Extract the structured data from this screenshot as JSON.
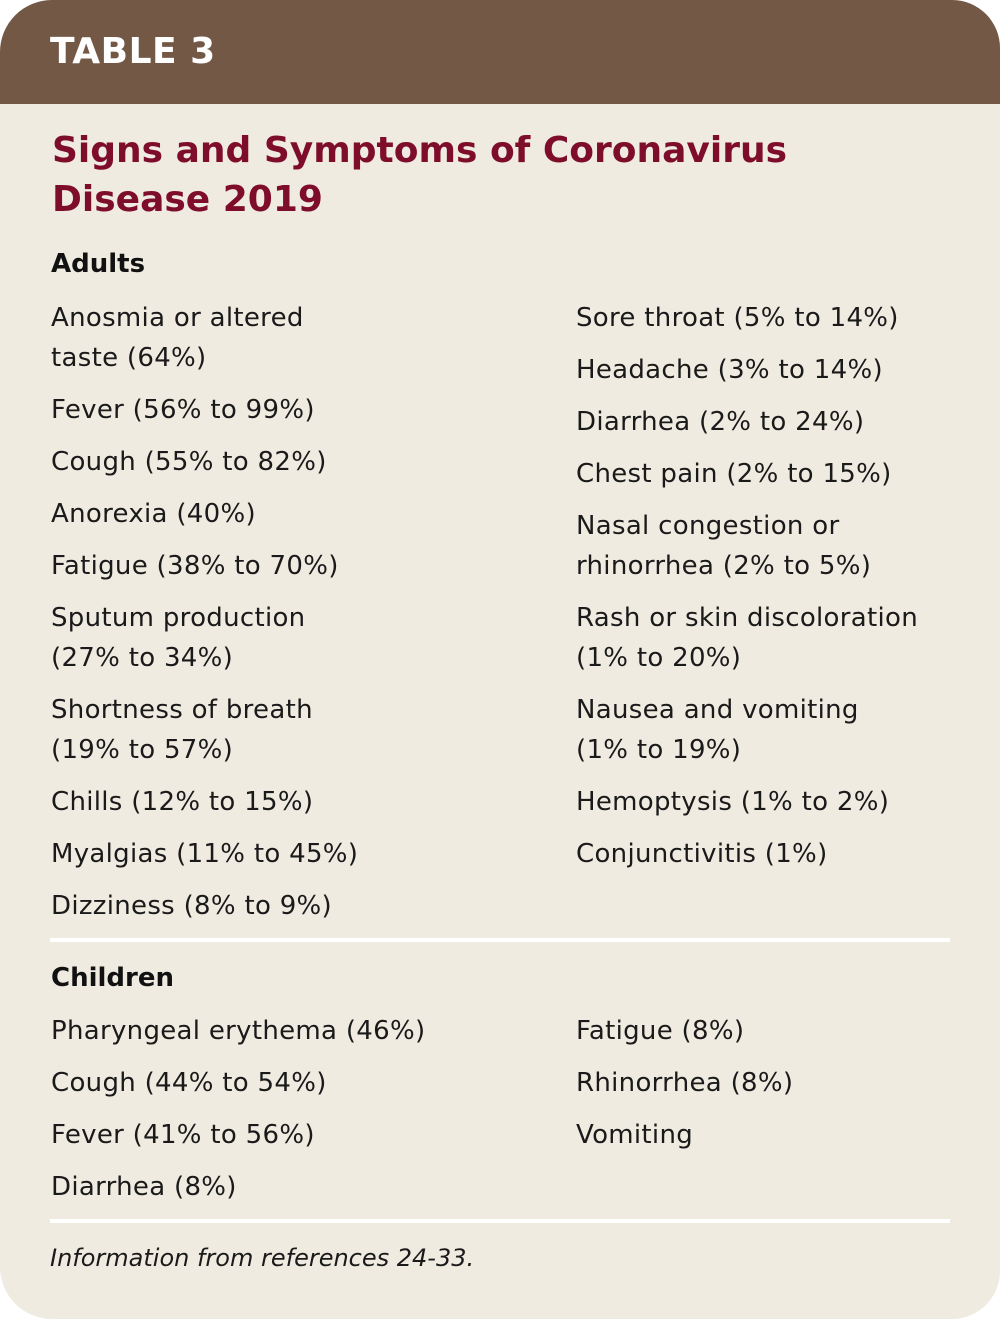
{
  "table": {
    "label": "TABLE 3",
    "title_line1": "Signs and Symptoms of Coronavirus",
    "title_line2": "Disease 2019",
    "footnote": "Information from references 24-33.",
    "colors": {
      "banner": "#735846",
      "title": "#7d0d2a",
      "background": "#f0ebe1",
      "divider": "#ffffff"
    }
  },
  "adults": {
    "heading": "Adults",
    "left": [
      "Anosmia or altered taste (64%)",
      "Fever (56% to 99%)",
      "Cough (55% to 82%)",
      "Anorexia (40%)",
      "Fatigue (38% to 70%)",
      "Sputum production (27% to 34%)",
      "Shortness of breath (19% to 57%)",
      "Chills (12% to 15%)",
      "Myalgias (11% to 45%)",
      "Dizziness (8% to 9%)"
    ],
    "right": [
      "Sore throat (5% to 14%)",
      "Headache (3% to 14%)",
      "Diarrhea (2% to 24%)",
      "Chest pain (2% to 15%)",
      "Nasal congestion or rhinorrhea (2% to 5%)",
      "Rash or skin discoloration (1% to 20%)",
      "Nausea and vomiting (1% to 19%)",
      "Hemoptysis (1% to 2%)",
      "Conjunctivitis (1%)"
    ]
  },
  "children": {
    "heading": "Children",
    "left": [
      "Pharyngeal erythema (46%)",
      "Cough (44% to 54%)",
      "Fever (41% to 56%)",
      "Diarrhea (8%)"
    ],
    "right": [
      "Fatigue (8%)",
      "Rhinorrhea (8%)",
      "Vomiting"
    ]
  }
}
